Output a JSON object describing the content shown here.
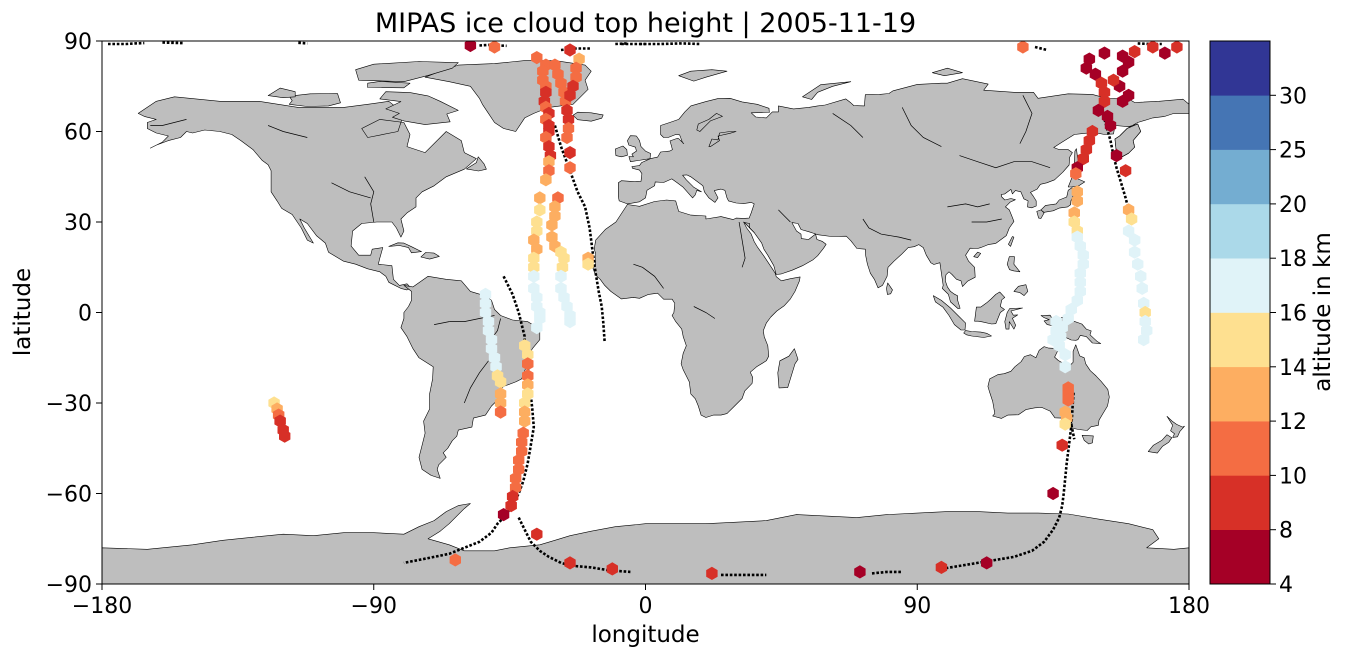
{
  "title": "MIPAS ice cloud top height | 2005-11-19",
  "xlabel": "longitude",
  "ylabel": "latitude",
  "colorbar": {
    "label": "altitude in km",
    "bounds": [
      4,
      8,
      10,
      12,
      14,
      16,
      18,
      20,
      25,
      30
    ],
    "colors": [
      "#a50026",
      "#d73027",
      "#f46d43",
      "#fdae61",
      "#fee090",
      "#e0f3f8",
      "#abd9e9",
      "#74add1",
      "#4575b4",
      "#313695"
    ],
    "tick_labels": [
      "4",
      "8",
      "10",
      "12",
      "14",
      "16",
      "18",
      "20",
      "25",
      "30"
    ]
  },
  "chart_data": {
    "type": "scatter",
    "projection": "plate carree",
    "xlim": [
      -180,
      180
    ],
    "ylim": [
      -90,
      90
    ],
    "xticks": [
      -180,
      -90,
      0,
      90,
      180
    ],
    "xtick_labels": [
      "−180",
      "−90",
      "0",
      "90",
      "180"
    ],
    "yticks": [
      -90,
      -60,
      -30,
      0,
      30,
      60,
      90
    ],
    "ytick_labels": [
      "−90",
      "−60",
      "−30",
      "0",
      "30",
      "60",
      "90"
    ],
    "land_color": "#bebebe",
    "track_color": "#000000",
    "tracks": [
      [
        [
          -47,
          12
        ],
        [
          -44,
          6
        ],
        [
          -42,
          0
        ],
        [
          -41,
          -4
        ],
        [
          -40,
          -8
        ],
        [
          -40,
          -13
        ],
        [
          -39,
          -18
        ],
        [
          -38.5,
          -23
        ],
        [
          -37.5,
          -32
        ],
        [
          -37,
          -38
        ],
        [
          -38,
          -44
        ],
        [
          -39,
          -50
        ],
        [
          -40.5,
          -56
        ],
        [
          -42,
          -60
        ],
        [
          -44,
          -64
        ],
        [
          -47,
          -68
        ],
        [
          -49,
          -70
        ],
        [
          -51,
          -73
        ],
        [
          -55,
          -76
        ],
        [
          -60,
          -78
        ],
        [
          -65,
          -80
        ],
        [
          -70,
          -81
        ],
        [
          -75,
          -82
        ],
        [
          -80,
          -83
        ]
      ],
      [
        [
          -30,
          62
        ],
        [
          -28,
          55
        ],
        [
          -25,
          47
        ],
        [
          -22.5,
          40
        ],
        [
          -20,
          35
        ],
        [
          -18.5,
          28
        ],
        [
          -17.5,
          20
        ],
        [
          -16.5,
          13
        ],
        [
          -15.5,
          7
        ],
        [
          -14.5,
          2
        ],
        [
          -14,
          -3
        ],
        [
          -13.5,
          -10
        ]
      ],
      [
        [
          -42,
          -68
        ],
        [
          -40,
          -72
        ],
        [
          -38,
          -76
        ],
        [
          -35,
          -79
        ],
        [
          -32,
          -81
        ],
        [
          -28,
          -83
        ],
        [
          -24,
          -84
        ],
        [
          -18,
          -84.5
        ],
        [
          -12,
          -85.5
        ],
        [
          -5,
          -86
        ]
      ],
      [
        [
          25,
          -87
        ],
        [
          30,
          -87
        ],
        [
          35,
          -87
        ],
        [
          40,
          -87
        ]
      ],
      [
        [
          75,
          -86.5
        ],
        [
          80,
          -86
        ],
        [
          85,
          -86
        ]
      ],
      [
        [
          98,
          -85
        ],
        [
          104,
          -84
        ],
        [
          110,
          -83
        ],
        [
          116,
          -82
        ],
        [
          122,
          -81
        ],
        [
          128,
          -79
        ],
        [
          132,
          -76
        ],
        [
          135,
          -72
        ],
        [
          137,
          -68
        ],
        [
          138,
          -64
        ],
        [
          138.5,
          -60
        ],
        [
          139,
          -55
        ],
        [
          139.5,
          -50
        ],
        [
          140,
          -46
        ],
        [
          140.5,
          -42
        ],
        [
          141,
          -38
        ],
        [
          141.3,
          -34
        ],
        [
          141.5,
          -30
        ],
        [
          141.8,
          -26
        ]
      ],
      [
        [
          140,
          -33
        ],
        [
          141,
          -37
        ],
        [
          142,
          -42
        ]
      ],
      [
        [
          152,
          64
        ],
        [
          154,
          57
        ],
        [
          155,
          52
        ],
        [
          156,
          48
        ],
        [
          157.5,
          43
        ],
        [
          159,
          38
        ],
        [
          160,
          34
        ],
        [
          160.5,
          30
        ]
      ],
      [
        [
          -178,
          89
        ],
        [
          -175,
          89
        ],
        [
          -172,
          89
        ],
        [
          -169,
          89.2
        ],
        [
          -166,
          89.3
        ]
      ],
      [
        [
          -160,
          89.5
        ],
        [
          -157,
          89.4
        ],
        [
          -153,
          89.3
        ]
      ],
      [
        [
          -115,
          89.4
        ],
        [
          -112,
          89.2
        ]
      ],
      [
        [
          -55,
          88.5
        ],
        [
          -52,
          88.7
        ],
        [
          -49,
          88.5
        ],
        [
          -46,
          88.4
        ]
      ],
      [
        [
          -28,
          87
        ],
        [
          -23,
          87.5
        ],
        [
          -18,
          87.5
        ]
      ],
      [
        [
          -8,
          89
        ],
        [
          -4,
          89
        ],
        [
          0,
          89
        ]
      ],
      [
        [
          -10,
          89
        ],
        [
          -6,
          89.2
        ]
      ],
      [
        [
          -2,
          89
        ],
        [
          5,
          89
        ],
        [
          12,
          89.2
        ],
        [
          18,
          89
        ]
      ],
      [
        [
          129,
          88
        ],
        [
          133,
          87
        ]
      ],
      [
        [
          163,
          89.2
        ],
        [
          167,
          89
        ],
        [
          171,
          89
        ]
      ]
    ],
    "points": [
      [
        -58,
        88.5,
        6
      ],
      [
        -50,
        88,
        11
      ],
      [
        -36,
        84.5,
        11
      ],
      [
        -25,
        87,
        8
      ],
      [
        -33,
        82,
        11
      ],
      [
        -34,
        80,
        11
      ],
      [
        -34,
        77,
        11
      ],
      [
        -33,
        75,
        11
      ],
      [
        -33,
        73,
        9
      ],
      [
        -33.5,
        70,
        8
      ],
      [
        -33,
        68,
        10
      ],
      [
        -32,
        66,
        9
      ],
      [
        -33,
        64,
        10
      ],
      [
        -32,
        62,
        9
      ],
      [
        -32,
        60,
        8
      ],
      [
        -33,
        58,
        11
      ],
      [
        -32,
        55,
        9
      ],
      [
        -31.5,
        52,
        8
      ],
      [
        -32,
        50,
        12
      ],
      [
        -32,
        47,
        11
      ],
      [
        -33,
        44,
        12
      ],
      [
        -30,
        82,
        10
      ],
      [
        -29,
        79,
        11
      ],
      [
        -28,
        76,
        11
      ],
      [
        -27,
        73,
        11
      ],
      [
        -26.5,
        70,
        10
      ],
      [
        -26,
        67,
        9
      ],
      [
        -25.5,
        64,
        9
      ],
      [
        -25.5,
        61,
        11
      ],
      [
        -26,
        58,
        11
      ],
      [
        -25,
        53,
        9
      ],
      [
        -25,
        48,
        10
      ],
      [
        -22,
        84,
        12
      ],
      [
        -23,
        81,
        10
      ],
      [
        -23,
        78,
        11
      ],
      [
        -24,
        75,
        9
      ],
      [
        -25,
        72,
        8
      ],
      [
        -35,
        38,
        12
      ],
      [
        -35,
        34,
        14
      ],
      [
        -36,
        30,
        15
      ],
      [
        -36,
        27,
        15
      ],
      [
        -37,
        24,
        13
      ],
      [
        -36,
        21,
        13
      ],
      [
        -37,
        18,
        14
      ],
      [
        -37,
        15,
        15
      ],
      [
        -37,
        12,
        16
      ],
      [
        -37,
        8,
        16
      ],
      [
        -36,
        5,
        16
      ],
      [
        -36,
        2,
        16
      ],
      [
        -35,
        0,
        16
      ],
      [
        -35,
        -2,
        16
      ],
      [
        -36,
        -5,
        16
      ],
      [
        -29,
        38,
        11
      ],
      [
        -30,
        35,
        12
      ],
      [
        -30,
        32,
        12
      ],
      [
        -31,
        29,
        13
      ],
      [
        -31,
        25,
        12
      ],
      [
        -30,
        22,
        13
      ],
      [
        -28,
        20,
        14
      ],
      [
        -27,
        18,
        15
      ],
      [
        -27.5,
        15,
        15
      ],
      [
        -28,
        12,
        16
      ],
      [
        -28,
        8,
        16
      ],
      [
        -27,
        5,
        16
      ],
      [
        -26,
        2,
        16
      ],
      [
        -25,
        -1,
        16
      ],
      [
        -25,
        -3,
        16
      ],
      [
        -19,
        18,
        13
      ],
      [
        -19,
        16,
        14
      ],
      [
        -53,
        6,
        16
      ],
      [
        -53,
        3,
        16
      ],
      [
        -53,
        0,
        16
      ],
      [
        -52,
        -3,
        16
      ],
      [
        -52,
        -6,
        16
      ],
      [
        -51,
        -9,
        16
      ],
      [
        -51,
        -12,
        16
      ],
      [
        -50,
        -15,
        16
      ],
      [
        -49.5,
        -18,
        16
      ],
      [
        -49,
        -21,
        15
      ],
      [
        -48,
        -23,
        15
      ],
      [
        -48,
        -27,
        13
      ],
      [
        -48,
        -30,
        13
      ],
      [
        -48,
        -33,
        11
      ],
      [
        -40,
        -11,
        15
      ],
      [
        -39,
        -14,
        14
      ],
      [
        -39,
        -17,
        10
      ],
      [
        -39,
        -21,
        11
      ],
      [
        -39,
        -24,
        13
      ],
      [
        -39,
        -27,
        14
      ],
      [
        -40,
        -30,
        15
      ],
      [
        -40,
        -33,
        13
      ],
      [
        -40,
        -36,
        12
      ],
      [
        -40.5,
        -40,
        11
      ],
      [
        -41,
        -43,
        10
      ],
      [
        -41,
        -46,
        11
      ],
      [
        -42,
        -49,
        11
      ],
      [
        -42,
        -52,
        10
      ],
      [
        -43,
        -55,
        10
      ],
      [
        -43,
        -58,
        10
      ],
      [
        -44,
        -61,
        9
      ],
      [
        -44.5,
        -64,
        9
      ],
      [
        -47,
        -67,
        7
      ],
      [
        -36,
        -73.5,
        8
      ],
      [
        -63,
        -82,
        10
      ],
      [
        -25,
        -83,
        8
      ],
      [
        -11,
        -85,
        8
      ],
      [
        22,
        -86.5,
        9
      ],
      [
        71,
        -86,
        7
      ],
      [
        98,
        -84.5,
        8
      ],
      [
        113,
        -83,
        7
      ],
      [
        -123,
        -30,
        14
      ],
      [
        -122,
        -32,
        13
      ],
      [
        -121.5,
        -34,
        11
      ],
      [
        -121,
        -36,
        9
      ],
      [
        -120,
        -39,
        9
      ],
      [
        -119.5,
        -41,
        9
      ],
      [
        125,
        88,
        11
      ],
      [
        168,
        88,
        8
      ],
      [
        176,
        88,
        8
      ],
      [
        172,
        86,
        7
      ],
      [
        162,
        86.5,
        8
      ],
      [
        147,
        84,
        7
      ],
      [
        146,
        81,
        7
      ],
      [
        149,
        79,
        6
      ],
      [
        151,
        76,
        9
      ],
      [
        152,
        73,
        8
      ],
      [
        152,
        70,
        8
      ],
      [
        150,
        67,
        7
      ],
      [
        153,
        65,
        7
      ],
      [
        154,
        62,
        6
      ],
      [
        148,
        60,
        9
      ],
      [
        147,
        57,
        8
      ],
      [
        146,
        54,
        8
      ],
      [
        145,
        51,
        9
      ],
      [
        143,
        48,
        7
      ],
      [
        142.5,
        46,
        11
      ],
      [
        143,
        40,
        12
      ],
      [
        143,
        37,
        12
      ],
      [
        142,
        33,
        13
      ],
      [
        142,
        30,
        14
      ],
      [
        143,
        27,
        15
      ],
      [
        143,
        25,
        16
      ],
      [
        144,
        22,
        16
      ],
      [
        145,
        19,
        17
      ],
      [
        145,
        16,
        17
      ],
      [
        144,
        13,
        17
      ],
      [
        144,
        10,
        17
      ],
      [
        144,
        7,
        17
      ],
      [
        143,
        4,
        17
      ],
      [
        141,
        1,
        17
      ],
      [
        140,
        -2,
        17
      ],
      [
        138,
        -5,
        16
      ],
      [
        137.5,
        -8,
        17
      ],
      [
        137,
        -11,
        16
      ],
      [
        139,
        -14,
        16
      ],
      [
        139,
        -18,
        16
      ],
      [
        136,
        -3,
        17
      ],
      [
        136,
        -6,
        17
      ],
      [
        135,
        -9,
        16
      ],
      [
        140,
        -25,
        11
      ],
      [
        140,
        -27,
        11
      ],
      [
        140,
        -29,
        11
      ],
      [
        139,
        -33,
        12
      ],
      [
        139.5,
        -35,
        13
      ],
      [
        139,
        -37,
        14
      ],
      [
        138,
        -44,
        9
      ],
      [
        135,
        -60,
        7
      ],
      [
        158,
        70,
        7
      ],
      [
        160,
        72,
        7
      ],
      [
        157,
        75,
        7
      ],
      [
        155,
        77,
        8
      ],
      [
        158,
        80,
        7
      ],
      [
        160,
        83,
        7
      ],
      [
        158,
        85,
        7
      ],
      [
        152,
        86,
        7
      ],
      [
        156,
        52,
        7
      ],
      [
        159,
        47,
        8
      ],
      [
        160,
        34,
        12
      ],
      [
        161,
        31,
        15
      ],
      [
        160,
        27,
        16
      ],
      [
        162,
        24,
        16
      ],
      [
        162,
        20,
        16
      ],
      [
        163,
        16,
        17
      ],
      [
        164,
        12,
        17
      ],
      [
        164.5,
        8,
        17
      ],
      [
        165,
        3,
        17
      ],
      [
        165.5,
        0,
        15
      ],
      [
        165.5,
        -3,
        16
      ],
      [
        166,
        -6,
        16
      ],
      [
        165,
        -9,
        16
      ]
    ]
  }
}
